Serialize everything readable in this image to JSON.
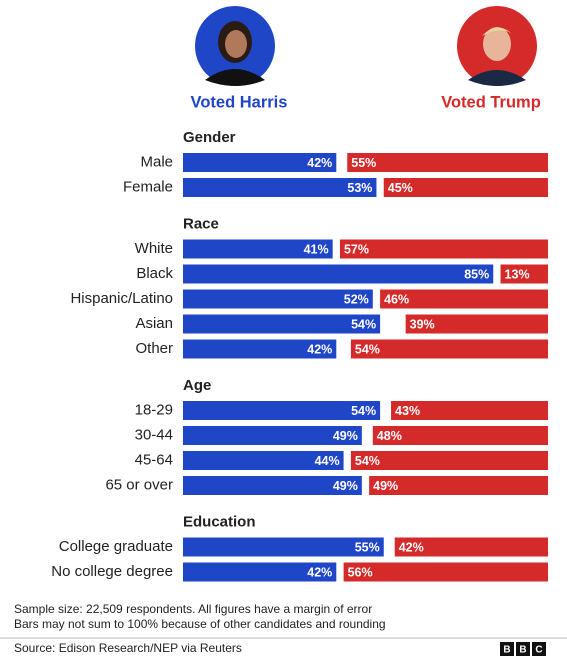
{
  "chart_data": {
    "type": "bar",
    "xlim": [
      0,
      100
    ],
    "series": [
      {
        "name": "Voted Harris",
        "color": "#2046c8"
      },
      {
        "name": "Voted Trump",
        "color": "#d42a2a"
      }
    ],
    "groups": [
      {
        "title": "Gender",
        "categories": [
          "Male",
          "Female"
        ],
        "series": [
          {
            "values": [
              42,
              53
            ],
            "value_labels": [
              "42%",
              "53%"
            ]
          },
          {
            "values": [
              55,
              45
            ],
            "value_labels": [
              "55%",
              "45%"
            ]
          }
        ]
      },
      {
        "title": "Race",
        "categories": [
          "White",
          "Black",
          "Hispanic/Latino",
          "Asian",
          "Other"
        ],
        "series": [
          {
            "values": [
              41,
              85,
              52,
              54,
              42
            ],
            "value_labels": [
              "41%",
              "85%",
              "52%",
              "54%",
              "42%"
            ]
          },
          {
            "values": [
              57,
              13,
              46,
              39,
              54
            ],
            "value_labels": [
              "57%",
              "13%",
              "46%",
              "39%",
              "54%"
            ]
          }
        ]
      },
      {
        "title": "Age",
        "categories": [
          "18-29",
          "30-44",
          "45-64",
          "65 or over"
        ],
        "series": [
          {
            "values": [
              54,
              49,
              44,
              49
            ],
            "value_labels": [
              "54%",
              "49%",
              "44%",
              "49%"
            ]
          },
          {
            "values": [
              43,
              48,
              54,
              49
            ],
            "value_labels": [
              "43%",
              "48%",
              "54%",
              "49%"
            ]
          }
        ]
      },
      {
        "title": "Education",
        "categories": [
          "College graduate",
          "No college degree"
        ],
        "series": [
          {
            "values": [
              55,
              42
            ],
            "value_labels": [
              "55%",
              "42%"
            ]
          },
          {
            "values": [
              42,
              56
            ],
            "value_labels": [
              "42%",
              "56%"
            ]
          }
        ]
      }
    ],
    "notes": [
      "Sample size: 22,509 respondents. All figures have a margin of error",
      "Bars may not sum to 100% because of other candidates and rounding"
    ],
    "source": "Source: Edison Research/NEP via Reuters",
    "logo": [
      "B",
      "B",
      "C"
    ]
  }
}
